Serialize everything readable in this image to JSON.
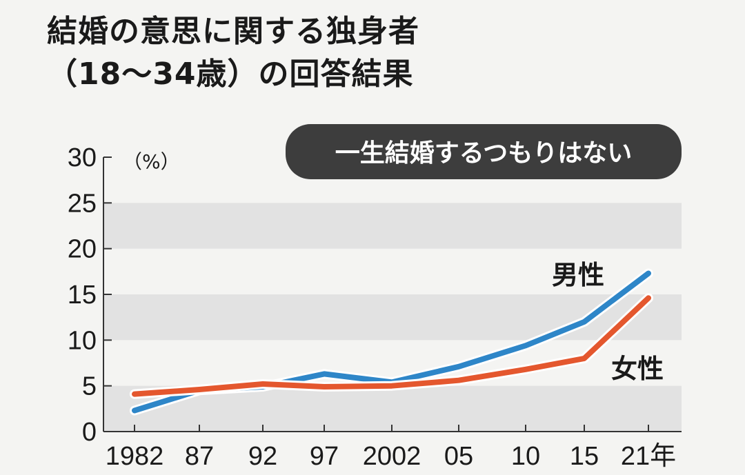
{
  "title": {
    "line1": "結婚の意思に関する独身者",
    "line2": "（18〜34歳）の回答結果"
  },
  "colors": {
    "male": "#2e86c8",
    "female": "#e4572e",
    "badge_bg": "#3d3d3d",
    "band": "#e2e2e2",
    "background": "#f4f4f2"
  },
  "chart_data": {
    "type": "line",
    "subtitle": "一生結婚するつもりはない",
    "unit": "（%）",
    "categories": [
      "1982",
      "87",
      "92",
      "97",
      "2002",
      "05",
      "10",
      "15",
      "21年"
    ],
    "ylim": [
      0,
      30
    ],
    "yticks": [
      "0",
      "5",
      "10",
      "15",
      "20",
      "25",
      "30"
    ],
    "grid": "alternating horizontal bands",
    "series": [
      {
        "name": "男性",
        "color": "#2e86c8",
        "values": [
          2.3,
          4.5,
          4.9,
          6.3,
          5.4,
          7.1,
          9.4,
          12.0,
          17.3
        ]
      },
      {
        "name": "女性",
        "color": "#e4572e",
        "values": [
          4.1,
          4.6,
          5.2,
          4.9,
          5.0,
          5.6,
          6.8,
          8.0,
          14.6
        ]
      }
    ]
  }
}
